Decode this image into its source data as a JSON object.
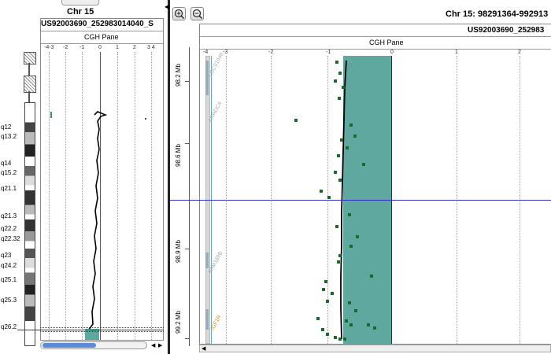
{
  "left_panel": {
    "chromosome_title": "Chr 15",
    "sample_title": "US92003690_252983014040_S",
    "pane_title": "CGH Pane",
    "axis_ticks": [
      "-4-3",
      "-2",
      "-1",
      "0",
      "1",
      "2",
      "3 4"
    ],
    "bands": [
      "q12",
      "q13.2",
      "q14",
      "q15.2",
      "q21.1",
      "q21.3",
      "q22.2",
      "q22.32",
      "q23",
      "q24.2",
      "q25.1",
      "q25.3",
      "q26.2"
    ]
  },
  "toolbar": {
    "zoom_in_icon": "zoom-in-icon",
    "zoom_out_icon": "zoom-out-icon"
  },
  "right_panel": {
    "region_title": "Chr 15: 98291364-992913",
    "sample_title": "US92003690_252983",
    "pane_title": "CGH Pane",
    "axis_ticks": [
      "-4",
      "-3",
      "-2",
      "-1",
      "0",
      "1",
      "2"
    ],
    "y_ticks": [
      "98.2 Mb",
      "98.6 Mb",
      "98.9 Mb",
      "99.2 Mb"
    ],
    "genes": [
      {
        "label": "LOC91948",
        "highlight": false
      },
      {
        "label": "ARRDC4",
        "highlight": false
      },
      {
        "label": "FAM169B",
        "highlight": false
      },
      {
        "label": "IGF1R",
        "highlight": true
      }
    ]
  },
  "colors": {
    "band_fill": "#5fa8a0",
    "point": "#1a6a2a",
    "cursor_line": "#3030c0",
    "scroll_thumb": "#5a8ad8"
  }
}
